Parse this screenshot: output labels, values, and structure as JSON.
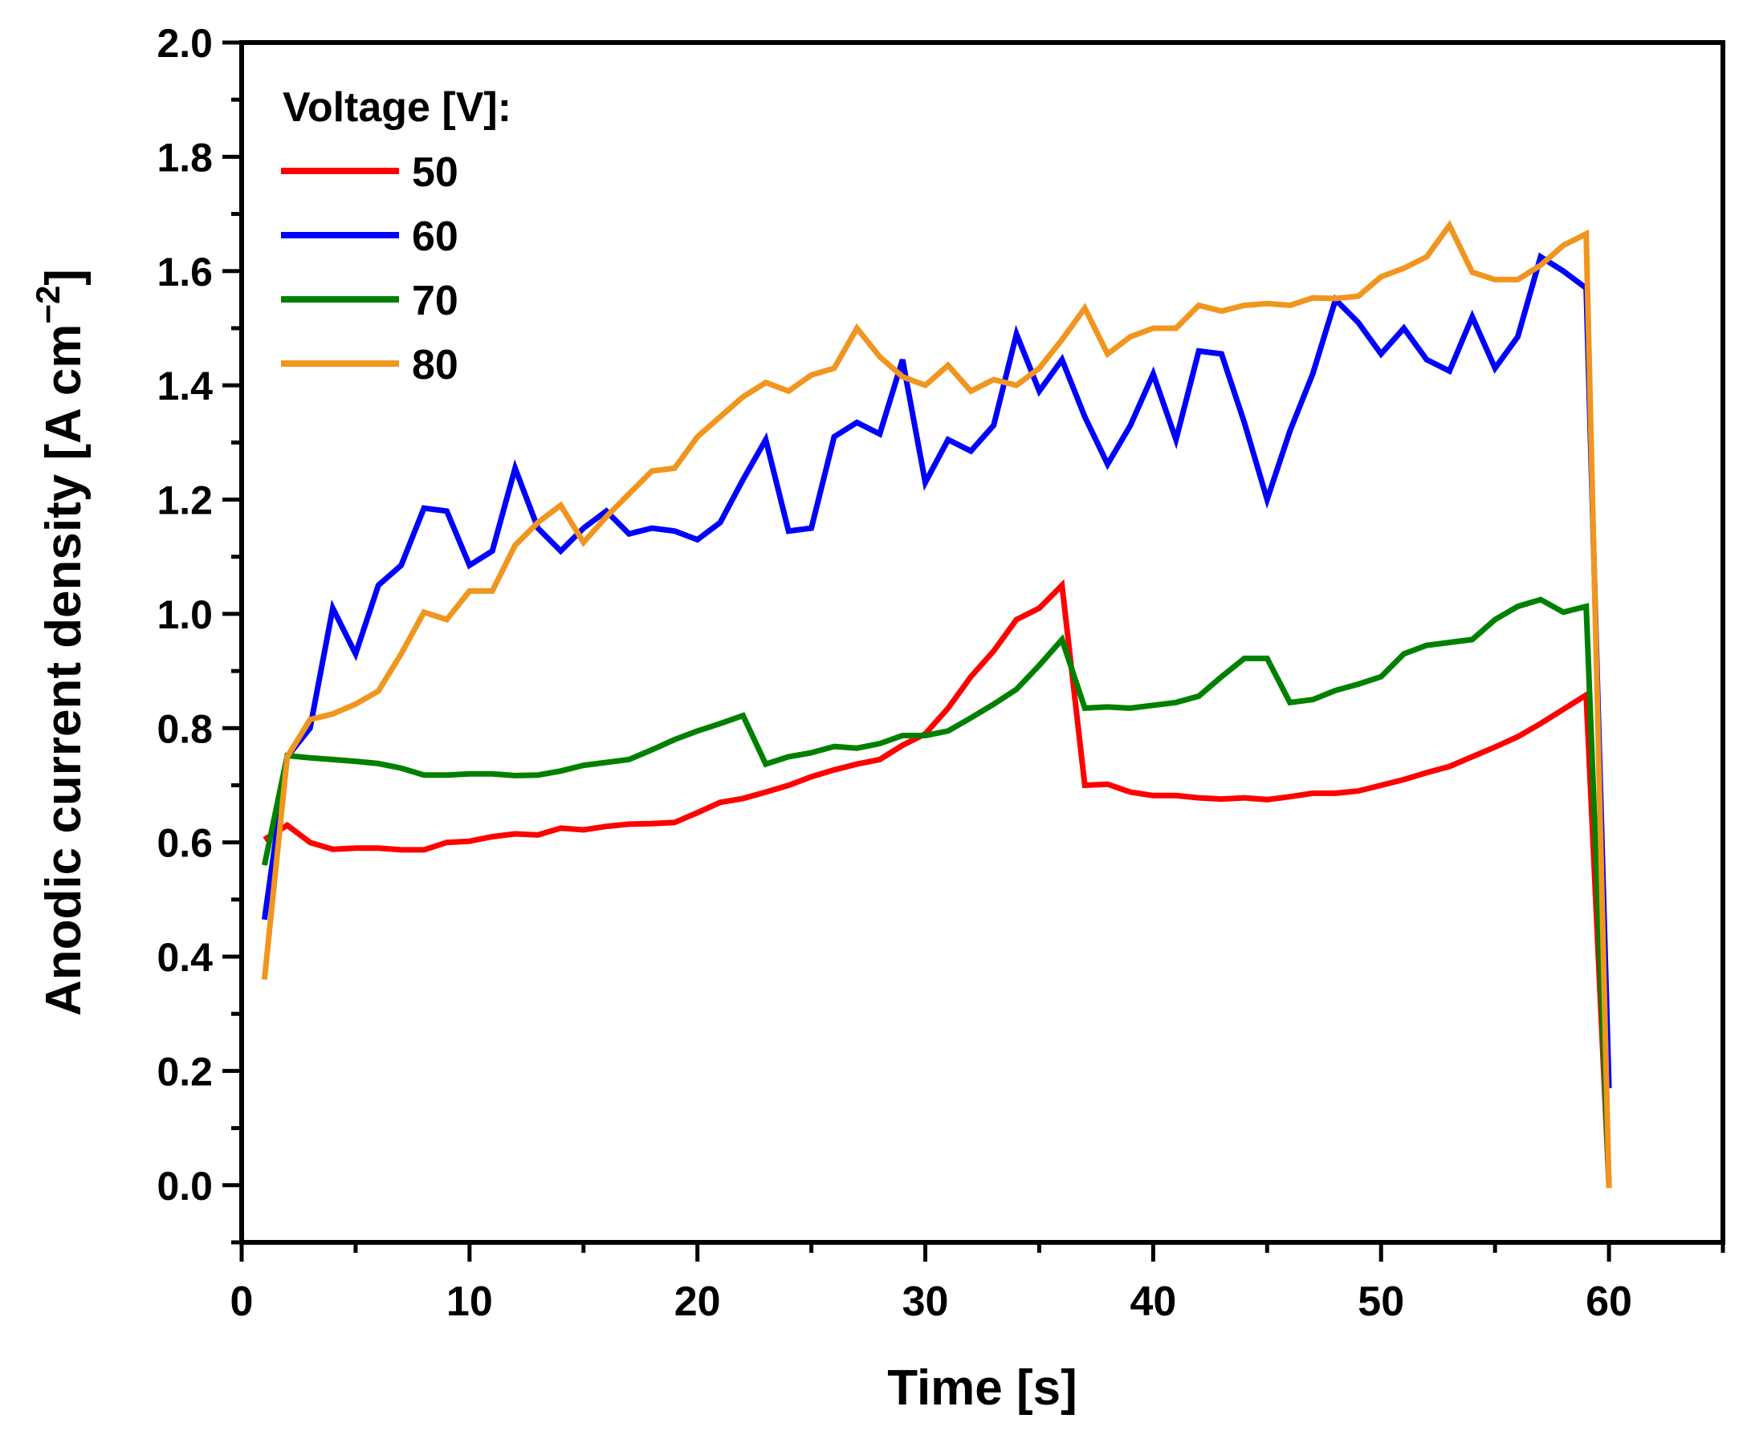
{
  "chart_data": {
    "type": "line",
    "title": "",
    "xlabel": "Time [s]",
    "ylabel_main": "Anodic current density [A cm",
    "ylabel_sup": "−2",
    "ylabel_close": "]",
    "xlim": [
      0,
      65
    ],
    "ylim": [
      -0.1,
      2.0
    ],
    "x_ticks": [
      0,
      10,
      20,
      30,
      40,
      50,
      60
    ],
    "x_tick_labels": [
      "0",
      "10",
      "20",
      "30",
      "40",
      "50",
      "60"
    ],
    "x_minor_ticks": [
      5,
      15,
      25,
      35,
      45,
      55,
      65
    ],
    "y_ticks": [
      0.0,
      0.2,
      0.4,
      0.6,
      0.8,
      1.0,
      1.2,
      1.4,
      1.6,
      1.8,
      2.0
    ],
    "y_tick_labels": [
      "0.0",
      "0.2",
      "0.4",
      "0.6",
      "0.8",
      "1.0",
      "1.2",
      "1.4",
      "1.6",
      "1.8",
      "2.0"
    ],
    "y_minor_ticks": [
      -0.1,
      0.1,
      0.3,
      0.5,
      0.7,
      0.9,
      1.1,
      1.3,
      1.5,
      1.7,
      1.9
    ],
    "grid": false,
    "legend_title": "Voltage [V]:",
    "legend_position": "top-left",
    "series": [
      {
        "name": "50",
        "color": "#ff0000",
        "points": [
          [
            1,
            0.605
          ],
          [
            2,
            0.63
          ],
          [
            3,
            0.6
          ],
          [
            4,
            0.588
          ],
          [
            5,
            0.59
          ],
          [
            6,
            0.59
          ],
          [
            7,
            0.587
          ],
          [
            8,
            0.587
          ],
          [
            9,
            0.6
          ],
          [
            10,
            0.602
          ],
          [
            11,
            0.61
          ],
          [
            12,
            0.615
          ],
          [
            13,
            0.613
          ],
          [
            14,
            0.625
          ],
          [
            15,
            0.622
          ],
          [
            16,
            0.628
          ],
          [
            17,
            0.632
          ],
          [
            18,
            0.633
          ],
          [
            19,
            0.635
          ],
          [
            20,
            0.652
          ],
          [
            21,
            0.67
          ],
          [
            22,
            0.677
          ],
          [
            23,
            0.688
          ],
          [
            24,
            0.7
          ],
          [
            25,
            0.715
          ],
          [
            26,
            0.727
          ],
          [
            27,
            0.737
          ],
          [
            28,
            0.745
          ],
          [
            29,
            0.77
          ],
          [
            30,
            0.79
          ],
          [
            31,
            0.835
          ],
          [
            32,
            0.89
          ],
          [
            33,
            0.935
          ],
          [
            34,
            0.99
          ],
          [
            35,
            1.01
          ],
          [
            36,
            1.05
          ],
          [
            37,
            0.7
          ],
          [
            38,
            0.702
          ],
          [
            39,
            0.688
          ],
          [
            40,
            0.682
          ],
          [
            41,
            0.682
          ],
          [
            42,
            0.678
          ],
          [
            43,
            0.676
          ],
          [
            44,
            0.678
          ],
          [
            45,
            0.675
          ],
          [
            46,
            0.68
          ],
          [
            47,
            0.686
          ],
          [
            48,
            0.686
          ],
          [
            49,
            0.69
          ],
          [
            50,
            0.7
          ],
          [
            51,
            0.71
          ],
          [
            52,
            0.722
          ],
          [
            53,
            0.733
          ],
          [
            54,
            0.75
          ],
          [
            55,
            0.767
          ],
          [
            56,
            0.785
          ],
          [
            57,
            0.808
          ],
          [
            58,
            0.833
          ],
          [
            59,
            0.858
          ],
          [
            60,
            0.0
          ]
        ]
      },
      {
        "name": "60",
        "color": "#0000ff",
        "points": [
          [
            1,
            0.465
          ],
          [
            2,
            0.75
          ],
          [
            3,
            0.8
          ],
          [
            4,
            1.01
          ],
          [
            5,
            0.93
          ],
          [
            6,
            1.05
          ],
          [
            7,
            1.085
          ],
          [
            8,
            1.185
          ],
          [
            9,
            1.18
          ],
          [
            10,
            1.085
          ],
          [
            11,
            1.11
          ],
          [
            12,
            1.255
          ],
          [
            13,
            1.15
          ],
          [
            14,
            1.11
          ],
          [
            15,
            1.15
          ],
          [
            16,
            1.18
          ],
          [
            17,
            1.14
          ],
          [
            18,
            1.15
          ],
          [
            19,
            1.145
          ],
          [
            20,
            1.13
          ],
          [
            21,
            1.16
          ],
          [
            22,
            1.235
          ],
          [
            23,
            1.305
          ],
          [
            24,
            1.145
          ],
          [
            25,
            1.15
          ],
          [
            26,
            1.31
          ],
          [
            27,
            1.335
          ],
          [
            28,
            1.315
          ],
          [
            29,
            1.445
          ],
          [
            30,
            1.23
          ],
          [
            31,
            1.305
          ],
          [
            32,
            1.285
          ],
          [
            33,
            1.33
          ],
          [
            34,
            1.49
          ],
          [
            35,
            1.39
          ],
          [
            36,
            1.445
          ],
          [
            37,
            1.345
          ],
          [
            38,
            1.262
          ],
          [
            39,
            1.33
          ],
          [
            40,
            1.42
          ],
          [
            41,
            1.305
          ],
          [
            42,
            1.46
          ],
          [
            43,
            1.455
          ],
          [
            44,
            1.335
          ],
          [
            45,
            1.2
          ],
          [
            46,
            1.32
          ],
          [
            47,
            1.42
          ],
          [
            48,
            1.55
          ],
          [
            49,
            1.51
          ],
          [
            50,
            1.455
          ],
          [
            51,
            1.5
          ],
          [
            52,
            1.445
          ],
          [
            53,
            1.425
          ],
          [
            54,
            1.52
          ],
          [
            55,
            1.43
          ],
          [
            56,
            1.485
          ],
          [
            57,
            1.625
          ],
          [
            58,
            1.6
          ],
          [
            59,
            1.57
          ],
          [
            60,
            0.17
          ]
        ]
      },
      {
        "name": "70",
        "color": "#008000",
        "points": [
          [
            1,
            0.56
          ],
          [
            2,
            0.752
          ],
          [
            3,
            0.748
          ],
          [
            4,
            0.745
          ],
          [
            5,
            0.742
          ],
          [
            6,
            0.738
          ],
          [
            7,
            0.73
          ],
          [
            8,
            0.718
          ],
          [
            9,
            0.718
          ],
          [
            10,
            0.72
          ],
          [
            11,
            0.72
          ],
          [
            12,
            0.717
          ],
          [
            13,
            0.718
          ],
          [
            14,
            0.725
          ],
          [
            15,
            0.735
          ],
          [
            16,
            0.74
          ],
          [
            17,
            0.745
          ],
          [
            18,
            0.762
          ],
          [
            19,
            0.78
          ],
          [
            20,
            0.795
          ],
          [
            21,
            0.808
          ],
          [
            22,
            0.822
          ],
          [
            23,
            0.737
          ],
          [
            24,
            0.75
          ],
          [
            25,
            0.757
          ],
          [
            26,
            0.768
          ],
          [
            27,
            0.765
          ],
          [
            28,
            0.773
          ],
          [
            29,
            0.787
          ],
          [
            30,
            0.787
          ],
          [
            31,
            0.795
          ],
          [
            32,
            0.818
          ],
          [
            33,
            0.842
          ],
          [
            34,
            0.868
          ],
          [
            35,
            0.91
          ],
          [
            36,
            0.955
          ],
          [
            37,
            0.835
          ],
          [
            38,
            0.837
          ],
          [
            39,
            0.835
          ],
          [
            40,
            0.84
          ],
          [
            41,
            0.845
          ],
          [
            42,
            0.856
          ],
          [
            43,
            0.89
          ],
          [
            44,
            0.922
          ],
          [
            45,
            0.922
          ],
          [
            46,
            0.845
          ],
          [
            47,
            0.85
          ],
          [
            48,
            0.866
          ],
          [
            49,
            0.877
          ],
          [
            50,
            0.89
          ],
          [
            51,
            0.93
          ],
          [
            52,
            0.945
          ],
          [
            53,
            0.95
          ],
          [
            54,
            0.955
          ],
          [
            55,
            0.99
          ],
          [
            56,
            1.013
          ],
          [
            57,
            1.025
          ],
          [
            58,
            1.003
          ],
          [
            59,
            1.013
          ],
          [
            60,
            0.0
          ]
        ]
      },
      {
        "name": "80",
        "color": "#f0961e",
        "points": [
          [
            1,
            0.36
          ],
          [
            2,
            0.75
          ],
          [
            3,
            0.815
          ],
          [
            4,
            0.825
          ],
          [
            5,
            0.842
          ],
          [
            6,
            0.865
          ],
          [
            7,
            0.93
          ],
          [
            8,
            1.003
          ],
          [
            9,
            0.99
          ],
          [
            10,
            1.04
          ],
          [
            11,
            1.04
          ],
          [
            12,
            1.12
          ],
          [
            13,
            1.16
          ],
          [
            14,
            1.19
          ],
          [
            15,
            1.125
          ],
          [
            16,
            1.17
          ],
          [
            17,
            1.21
          ],
          [
            18,
            1.25
          ],
          [
            19,
            1.255
          ],
          [
            20,
            1.31
          ],
          [
            21,
            1.345
          ],
          [
            22,
            1.38
          ],
          [
            23,
            1.405
          ],
          [
            24,
            1.39
          ],
          [
            25,
            1.418
          ],
          [
            26,
            1.43
          ],
          [
            27,
            1.5
          ],
          [
            28,
            1.45
          ],
          [
            29,
            1.415
          ],
          [
            30,
            1.4
          ],
          [
            31,
            1.435
          ],
          [
            32,
            1.39
          ],
          [
            33,
            1.41
          ],
          [
            34,
            1.4
          ],
          [
            35,
            1.43
          ],
          [
            36,
            1.48
          ],
          [
            37,
            1.535
          ],
          [
            38,
            1.455
          ],
          [
            39,
            1.485
          ],
          [
            40,
            1.5
          ],
          [
            41,
            1.5
          ],
          [
            42,
            1.54
          ],
          [
            43,
            1.53
          ],
          [
            44,
            1.54
          ],
          [
            45,
            1.543
          ],
          [
            46,
            1.54
          ],
          [
            47,
            1.553
          ],
          [
            48,
            1.552
          ],
          [
            49,
            1.556
          ],
          [
            50,
            1.59
          ],
          [
            51,
            1.605
          ],
          [
            52,
            1.625
          ],
          [
            53,
            1.68
          ],
          [
            54,
            1.598
          ],
          [
            55,
            1.585
          ],
          [
            56,
            1.585
          ],
          [
            57,
            1.61
          ],
          [
            58,
            1.645
          ],
          [
            59,
            1.665
          ],
          [
            60,
            -0.005
          ]
        ]
      }
    ]
  }
}
